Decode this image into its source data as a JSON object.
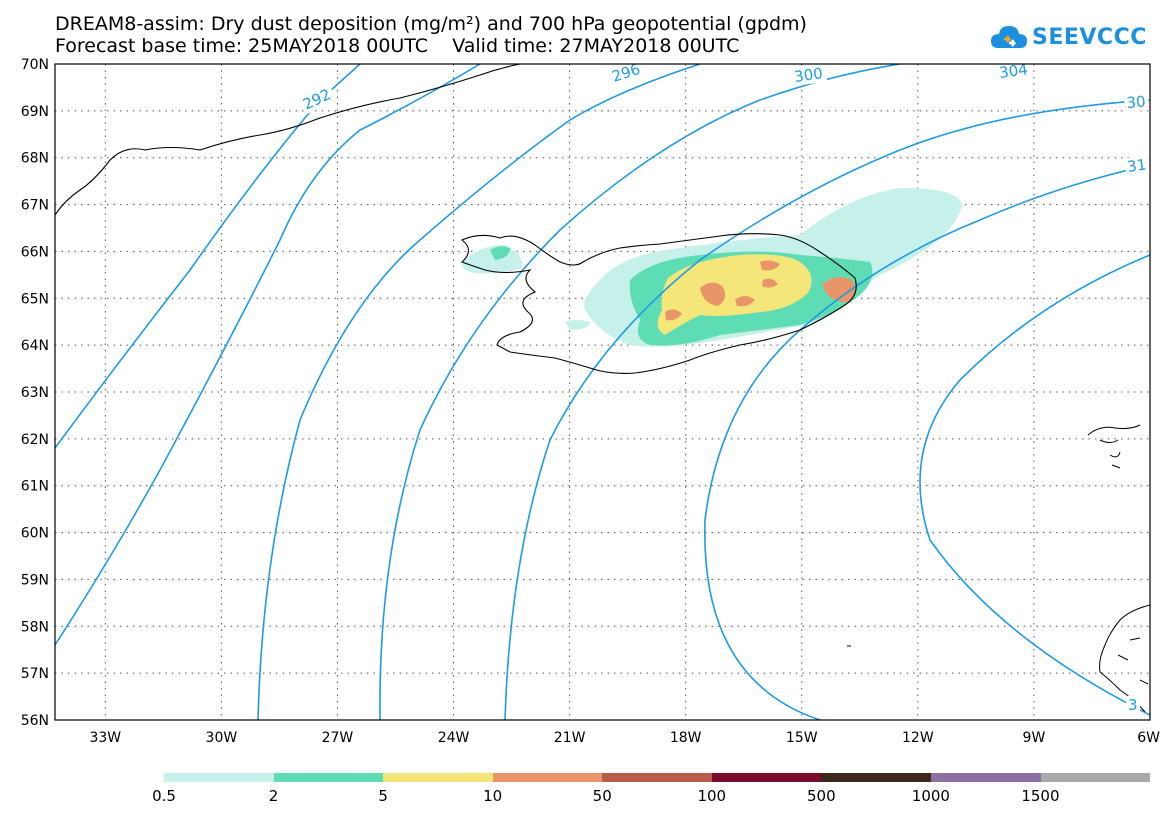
{
  "title_line1": "DREAM8-assim: Dry dust deposition (mg/m²) and 700 hPa geopotential (gpdm)",
  "title_line2": "Forecast base time: 25MAY2018 00UTC    Valid time: 27MAY2018 00UTC",
  "logo_text": "SEEVCCC",
  "lat_labels": [
    "70N",
    "69N",
    "68N",
    "67N",
    "66N",
    "65N",
    "64N",
    "63N",
    "62N",
    "61N",
    "60N",
    "59N",
    "58N",
    "57N",
    "56N"
  ],
  "lon_labels": [
    "33W",
    "30W",
    "27W",
    "24W",
    "21W",
    "18W",
    "15W",
    "12W",
    "9W",
    "6W"
  ],
  "contour_labels": [
    "292",
    "296",
    "300",
    "304",
    "30",
    "31",
    "3"
  ],
  "legend": {
    "colors": [
      "#c6f0ea",
      "#5edcb3",
      "#f5e67a",
      "#e8956a",
      "#b85a4a",
      "#7a0c2e",
      "#3d2a1a",
      "#8e6fa1",
      "#a8a8a8"
    ],
    "labels": [
      "0.5",
      "2",
      "5",
      "10",
      "50",
      "100",
      "500",
      "1000",
      "1500"
    ]
  },
  "map_colors": {
    "contour": "#1f9be4",
    "land_outline": "#000000",
    "grid": "#555555"
  }
}
